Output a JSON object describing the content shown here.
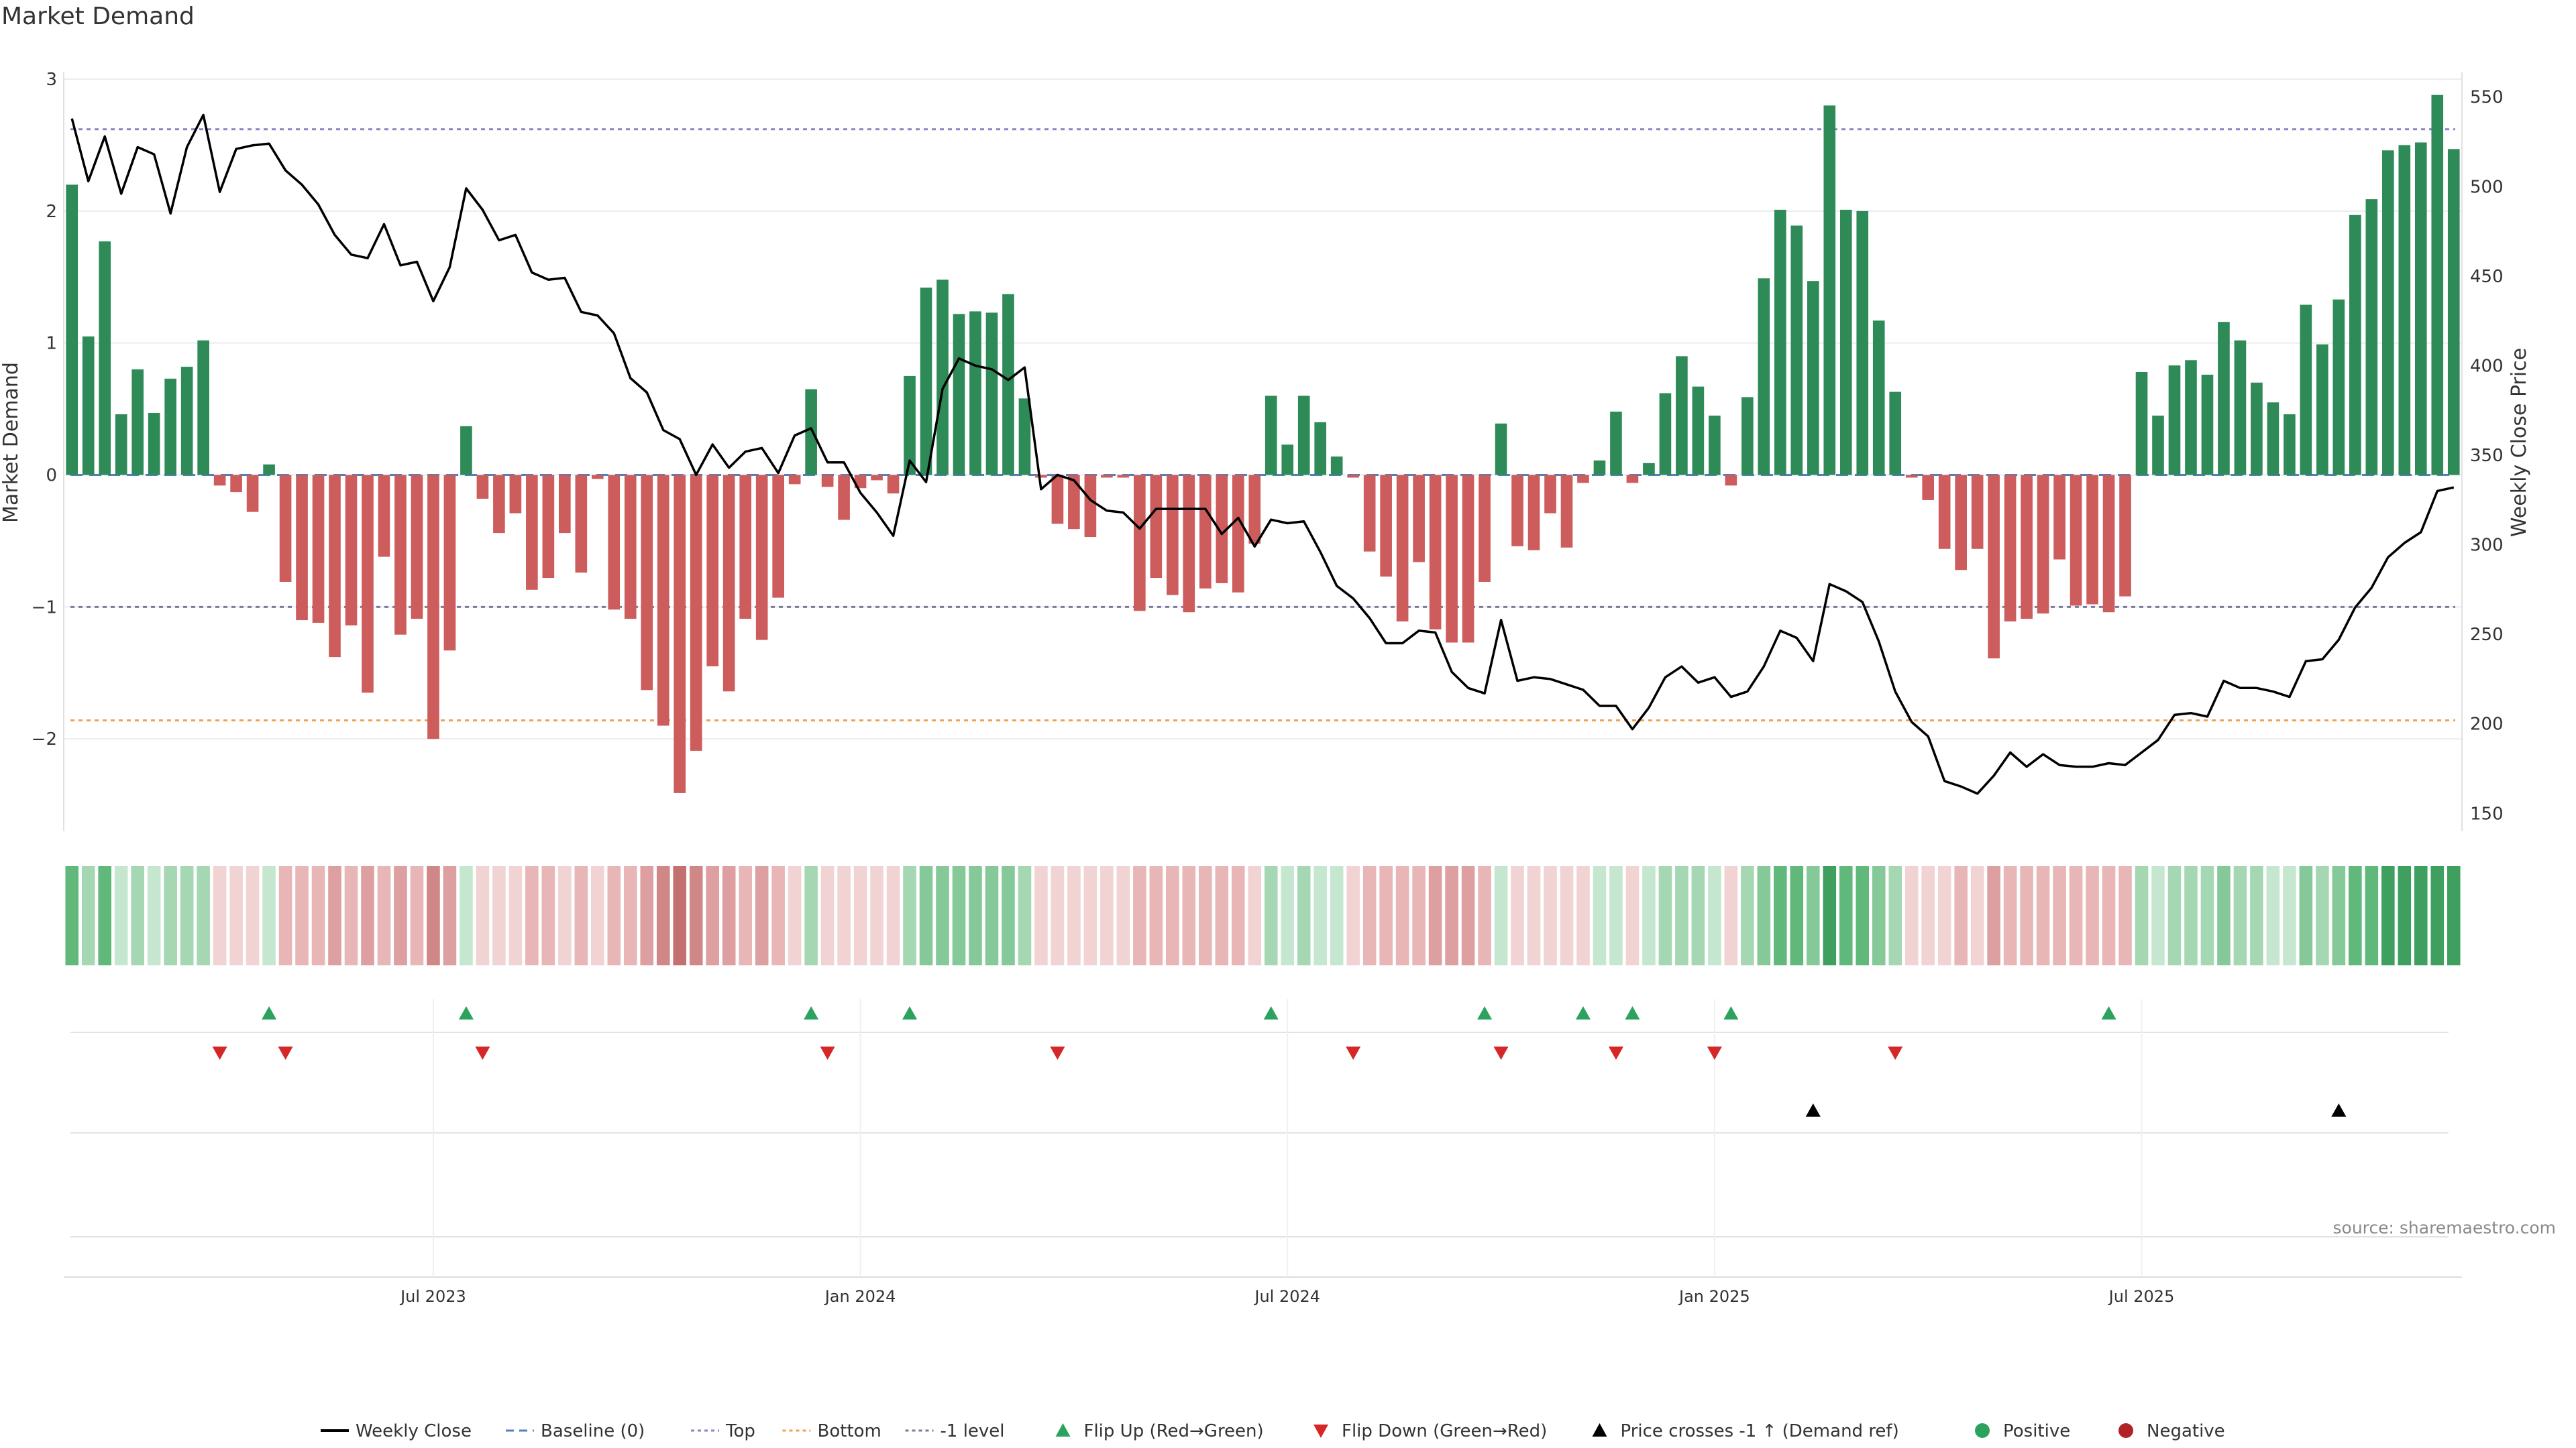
{
  "page": {
    "title": "Market Demand",
    "source": "source: sharemaestro.com"
  },
  "chart_data": {
    "type": "bar",
    "title": "Market Demand",
    "ylabel_left": "Market Demand",
    "ylabel_right": "Weekly Close Price",
    "ylim_left": [
      -2.7,
      3.0
    ],
    "yticks_left": [
      -2,
      -1,
      0,
      1,
      2,
      3
    ],
    "ytick_labels_left": [
      "−2",
      "−1",
      "0",
      "1",
      "2",
      "3"
    ],
    "ylim_right": [
      140,
      560
    ],
    "yticks_right": [
      150,
      200,
      250,
      300,
      350,
      400,
      450,
      500,
      550
    ],
    "x_start_week": "2023-03-12",
    "x_ticks": [
      {
        "label": "Jul 2023",
        "week": 22
      },
      {
        "label": "Jan 2024",
        "week": 48
      },
      {
        "label": "Jul 2024",
        "week": 74
      },
      {
        "label": "Jan 2025",
        "week": 100
      },
      {
        "label": "Jul 2025",
        "week": 126
      }
    ],
    "reference_lines": [
      {
        "name": "Baseline (0)",
        "value": 0,
        "color": "#4f81bd",
        "dash": "18,10"
      },
      {
        "name": "Top",
        "value": 2.62,
        "color": "#8a84c4",
        "dash": "6,6"
      },
      {
        "name": "Bottom",
        "value": -1.86,
        "color": "#f0a050",
        "dash": "6,6"
      },
      {
        "name": "-1 level",
        "value": -1.0,
        "color": "#7a7aa0",
        "dash": "6,6"
      }
    ],
    "demand": [
      2.2,
      1.05,
      1.77,
      0.46,
      0.8,
      0.47,
      0.73,
      0.82,
      1.02,
      -0.08,
      -0.13,
      -0.28,
      0.08,
      -0.81,
      -1.1,
      -1.12,
      -1.38,
      -1.14,
      -1.65,
      -0.62,
      -1.21,
      -1.09,
      -2.0,
      -1.33,
      0.37,
      -0.18,
      -0.44,
      -0.29,
      -0.87,
      -0.78,
      -0.44,
      -0.74,
      -0.03,
      -1.02,
      -1.09,
      -1.63,
      -1.9,
      -2.41,
      -2.09,
      -1.45,
      -1.64,
      -1.09,
      -1.25,
      -0.93,
      -0.07,
      0.65,
      -0.09,
      -0.34,
      -0.1,
      -0.04,
      -0.14,
      0.75,
      1.42,
      1.48,
      1.22,
      1.24,
      1.23,
      1.37,
      0.58,
      -0.02,
      -0.37,
      -0.41,
      -0.47,
      -0.02,
      -0.02,
      -1.03,
      -0.78,
      -0.91,
      -1.04,
      -0.86,
      -0.82,
      -0.89,
      -0.52,
      0.6,
      0.23,
      0.6,
      0.4,
      0.14,
      -0.02,
      -0.58,
      -0.77,
      -1.11,
      -0.66,
      -1.17,
      -1.27,
      -1.27,
      -0.81,
      0.39,
      -0.54,
      -0.57,
      -0.29,
      -0.55,
      -0.06,
      0.11,
      0.48,
      -0.06,
      0.09,
      0.62,
      0.9,
      0.67,
      0.45,
      -0.08,
      0.59,
      1.49,
      2.01,
      1.89,
      1.47,
      2.8,
      2.01,
      2.0,
      1.17,
      0.63,
      -0.02,
      -0.19,
      -0.56,
      -0.72,
      -0.56,
      -1.39,
      -1.11,
      -1.09,
      -1.05,
      -0.64,
      -0.99,
      -0.98,
      -1.04,
      -0.92,
      0.78,
      0.45,
      0.83,
      0.87,
      0.76,
      1.16,
      1.02,
      0.7,
      0.55,
      0.46,
      1.29,
      0.99,
      1.33,
      1.97,
      2.09,
      2.46,
      2.5,
      2.52,
      2.88,
      2.47
    ],
    "weekly_close": [
      538,
      503,
      528,
      496,
      522,
      518,
      485,
      522,
      540,
      497,
      521,
      523,
      524,
      509,
      501,
      490,
      473,
      462,
      460,
      479,
      456,
      458,
      436,
      455,
      499,
      487,
      470,
      473,
      452,
      448,
      449,
      430,
      428,
      418,
      393,
      385,
      364,
      359,
      339,
      356,
      343,
      352,
      354,
      340,
      361,
      365,
      346,
      346,
      329,
      318,
      305,
      347,
      335,
      387,
      404,
      400,
      398,
      392,
      399,
      331,
      339,
      336,
      325,
      319,
      318,
      309,
      320,
      320,
      320,
      320,
      306,
      315,
      299,
      314,
      312,
      313,
      296,
      277,
      270,
      259,
      245,
      245,
      252,
      251,
      229,
      220,
      217,
      258,
      224,
      226,
      225,
      222,
      219,
      210,
      210,
      197,
      209,
      226,
      232,
      223,
      226,
      215,
      218,
      232,
      252,
      248,
      235,
      278,
      274,
      268,
      246,
      218,
      201,
      193,
      168,
      165,
      161,
      171,
      184,
      176,
      183,
      177,
      176,
      176,
      178,
      177,
      184,
      191,
      205,
      206,
      204,
      224,
      220,
      220,
      218,
      215,
      235,
      236,
      247,
      265,
      276,
      293,
      301,
      307,
      330,
      332
    ],
    "flip_up_weeks": [
      12,
      24,
      45,
      51,
      73,
      86,
      92,
      95,
      101,
      124
    ],
    "flip_down_weeks": [
      9,
      13,
      25,
      46,
      60,
      78,
      87,
      94,
      100,
      111
    ],
    "price_cross_weeks": [
      106,
      138
    ],
    "heat_colors": {
      "positive": [
        "#c6e7cf",
        "#a5d8b2",
        "#85c998",
        "#61b87b",
        "#3f9f5e"
      ],
      "negative": [
        "#f1d3d3",
        "#e8b6b6",
        "#dd9f9f",
        "#d08787",
        "#c57070"
      ]
    },
    "bar_colors": {
      "positive": "#2e8a57",
      "negative": "#cd5c5c"
    },
    "line_color": "#000000",
    "marker_colors": {
      "flip_up": "#2ca25f",
      "flip_down": "#d62728",
      "price_cross": "#000000"
    },
    "legend": [
      {
        "label": "Weekly Close",
        "kind": "line",
        "color": "#000000"
      },
      {
        "label": "Baseline (0)",
        "kind": "dash",
        "color": "#4f81bd"
      },
      {
        "label": "Top",
        "kind": "dot",
        "color": "#8a84c4"
      },
      {
        "label": "Bottom",
        "kind": "dot",
        "color": "#f0a050"
      },
      {
        "label": "-1 level",
        "kind": "dot",
        "color": "#7a7aa0"
      },
      {
        "label": "Flip Up (Red→Green)",
        "kind": "tri-up",
        "color": "#2ca25f"
      },
      {
        "label": "Flip Down (Green→Red)",
        "kind": "tri-down",
        "color": "#d62728"
      },
      {
        "label": "Price crosses -1 ↑ (Demand ref)",
        "kind": "tri-up",
        "color": "#000000"
      },
      {
        "label": "Positive",
        "kind": "circle",
        "color": "#2ca25f"
      },
      {
        "label": "Negative",
        "kind": "circle",
        "color": "#b22222"
      }
    ]
  }
}
